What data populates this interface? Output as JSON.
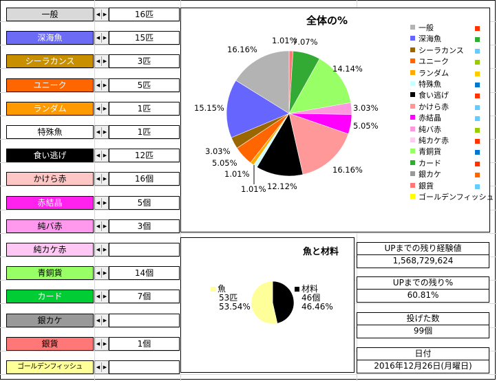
{
  "items": [
    {
      "label": "一般",
      "count": "16匹",
      "bg": "#d9d9d9",
      "fg": "#000000"
    },
    {
      "label": "深海魚",
      "count": "15匹",
      "bg": "#6b6bf5",
      "fg": "#ffffff"
    },
    {
      "label": "シーラカンス",
      "count": "3匹",
      "bg": "#c89000",
      "fg": "#ffffff"
    },
    {
      "label": "ユニーク",
      "count": "5匹",
      "bg": "#ff6600",
      "fg": "#ffffff"
    },
    {
      "label": "ランダム",
      "count": "1匹",
      "bg": "#ff9900",
      "fg": "#ffffff"
    },
    {
      "label": "特殊魚",
      "count": "1匹",
      "bg": "#ffffff",
      "fg": "#000000"
    },
    {
      "label": "食い逃げ",
      "count": "12匹",
      "bg": "#000000",
      "fg": "#ffffff"
    },
    {
      "label": "かけら赤",
      "count": "16個",
      "bg": "#ffc6c6",
      "fg": "#000000"
    },
    {
      "label": "赤結晶",
      "count": "5個",
      "bg": "#ff22ee",
      "fg": "#ffffff"
    },
    {
      "label": "純バ赤",
      "count": "3個",
      "bg": "#ff99ee",
      "fg": "#000000"
    },
    {
      "label": "純カケ赤",
      "count": "",
      "bg": "#ffc8f4",
      "fg": "#000000"
    },
    {
      "label": "青銅貨",
      "count": "14個",
      "bg": "#99ff66",
      "fg": "#000000"
    },
    {
      "label": "カード",
      "count": "7個",
      "bg": "#00cc33",
      "fg": "#ffffff"
    },
    {
      "label": "銀カケ",
      "count": "",
      "bg": "#999999",
      "fg": "#000000"
    },
    {
      "label": "銀貨",
      "count": "1個",
      "bg": "#ff7777",
      "fg": "#000000"
    },
    {
      "label": "ゴールデンフィッシュ",
      "count": "",
      "bg": "#ffff99",
      "fg": "#000000"
    }
  ],
  "pie_main": {
    "title": "全体の%",
    "legend": [
      {
        "name": "一般",
        "color": "#b3b3b3",
        "marker": "#ff3300"
      },
      {
        "name": "深海魚",
        "color": "#6666ff",
        "marker": "#33aa33"
      },
      {
        "name": "シーラカンス",
        "color": "#996600",
        "marker": "#66ccff"
      },
      {
        "name": "ユニーク",
        "color": "#ff6600",
        "marker": "#99cc00"
      },
      {
        "name": "ランダム",
        "color": "#ffaa00",
        "marker": "#ffcc00"
      },
      {
        "name": "特殊魚",
        "color": "#ccffff",
        "marker": "#0077cc"
      },
      {
        "name": "食い逃げ",
        "color": "#000000",
        "marker": "#ff3300"
      },
      {
        "name": "かけら赤",
        "color": "#ff9999",
        "marker": "#66ccff"
      },
      {
        "name": "赤結晶",
        "color": "#ff00ff",
        "marker": "#66ccff"
      },
      {
        "name": "純バ赤",
        "color": "#ff99dd",
        "marker": "#99cc00"
      },
      {
        "name": "純カケ赤",
        "color": "#ffccf2",
        "marker": "#ff3300"
      },
      {
        "name": "青銅貨",
        "color": "#99ff66",
        "marker": "#0077cc"
      },
      {
        "name": "カード",
        "color": "#33aa33",
        "marker": "#ff3300"
      },
      {
        "name": "銀カケ",
        "color": "#999999",
        "marker": "#ff6600"
      },
      {
        "name": "銀貨",
        "color": "#ff7777",
        "marker": "#66ccff"
      },
      {
        "name": "ゴールデンフィッシュ",
        "color": "#ffff00",
        "marker": ""
      }
    ]
  },
  "pie_small": {
    "title": "魚と材料",
    "fish_name": "魚",
    "fish_count": "53匹",
    "fish_pct": "53.54%",
    "mat_name": "材料",
    "mat_count": "46個",
    "mat_pct": "46.46%"
  },
  "chart_data": [
    {
      "type": "pie",
      "title": "全体の%",
      "categories": [
        "一般",
        "深海魚",
        "シーラカンス",
        "ユニーク",
        "ランダム",
        "特殊魚",
        "食い逃げ",
        "かけら赤",
        "赤結晶",
        "純バ赤",
        "純カケ赤",
        "青銅貨",
        "カード",
        "銀カケ",
        "銀貨",
        "ゴールデンフィッシュ"
      ],
      "values": [
        16.16,
        15.15,
        3.03,
        5.05,
        1.01,
        1.01,
        12.12,
        16.16,
        5.05,
        3.03,
        0,
        14.14,
        7.07,
        0,
        1.01,
        0
      ],
      "value_labels": [
        "16.16%",
        "15.15%",
        "3.03%",
        "5.05%",
        "1.01%",
        "1.01%",
        "12.12%",
        "16.16%",
        "5.05%",
        "3.03%",
        "",
        "14.14%",
        "7.07%",
        "",
        "1.01%",
        ""
      ],
      "legend_position": "right"
    },
    {
      "type": "pie",
      "title": "魚と材料",
      "categories": [
        "魚",
        "材料"
      ],
      "values": [
        53.54,
        46.46
      ],
      "counts": [
        "53匹",
        "46個"
      ],
      "legend_position": "labels"
    }
  ],
  "stats": [
    {
      "label": "UPまでの残り経験値",
      "value": "1,568,729,624"
    },
    {
      "label": "UPまでの残り%",
      "value": "60.81%"
    },
    {
      "label": "投げた数",
      "value": "99個"
    },
    {
      "label": "日付",
      "value": "2016年12月26日(月曜日)"
    }
  ]
}
